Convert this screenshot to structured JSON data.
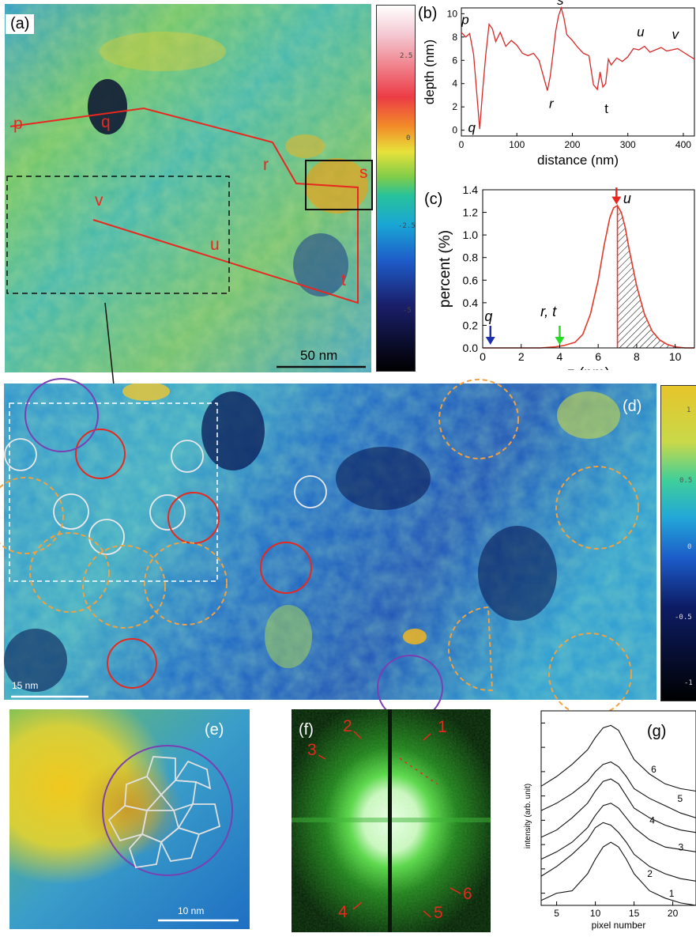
{
  "panels": {
    "a": {
      "label": "(a)",
      "points": [
        "p",
        "q",
        "r",
        "s",
        "t",
        "u",
        "v"
      ],
      "scalebar": "50 nm",
      "colorbar_ticks": [
        "2.5",
        "0",
        "-2.5",
        "-5"
      ]
    },
    "b": {
      "label": "(b)",
      "xlabel": "distance (nm)",
      "ylabel": "depth (nm)",
      "xticks": [
        "0",
        "100",
        "200",
        "300",
        "400"
      ],
      "yticks": [
        "0",
        "2",
        "4",
        "6",
        "8",
        "10"
      ],
      "annotations": [
        "p",
        "q",
        "r",
        "s",
        "t",
        "u",
        "v"
      ]
    },
    "c": {
      "label": "(c)",
      "xlabel": "z (nm)",
      "ylabel": "percent (%)",
      "xticks": [
        "0",
        "2",
        "4",
        "6",
        "8",
        "10"
      ],
      "yticks": [
        "0.0",
        "0.2",
        "0.4",
        "0.6",
        "0.8",
        "1.0",
        "1.2",
        "1.4"
      ],
      "annotations": [
        "q",
        "r, t",
        "u"
      ],
      "colors": {
        "curve": "#e23a2a",
        "q_arrow": "#1c2fb0",
        "rt_arrow": "#22dd22",
        "u_arrow": "#e8281e"
      }
    },
    "d": {
      "label": "(d)",
      "scalebar": "15 nm",
      "colorbar_ticks": [
        "1",
        "0.5",
        "0",
        "-0.5",
        "-1"
      ]
    },
    "e": {
      "label": "(e)",
      "scalebar": "10 nm"
    },
    "f": {
      "label": "(f)",
      "spots": [
        "1",
        "2",
        "3",
        "4",
        "5",
        "6"
      ]
    },
    "g": {
      "label": "(g)",
      "xlabel": "pixel number",
      "ylabel": "intensity (arb. unit)",
      "xticks": [
        "5",
        "10",
        "15",
        "20"
      ],
      "curve_labels": [
        "6",
        "5",
        "4",
        "3",
        "2",
        "1"
      ]
    }
  },
  "chart_data": [
    {
      "type": "line",
      "title": "",
      "xlabel": "distance (nm)",
      "ylabel": "depth (nm)",
      "xlim": [
        0,
        420
      ],
      "ylim": [
        -0.5,
        10.5
      ],
      "series": [
        {
          "color": "#d42a2a",
          "x": [
            0,
            8,
            15,
            22,
            28,
            33,
            38,
            44,
            50,
            56,
            62,
            70,
            80,
            90,
            100,
            110,
            120,
            130,
            140,
            148,
            155,
            160,
            165,
            170,
            175,
            180,
            185,
            190,
            200,
            210,
            220,
            230,
            238,
            245,
            250,
            255,
            260,
            265,
            270,
            280,
            290,
            300,
            310,
            320,
            330,
            340,
            350,
            360,
            370,
            380,
            390,
            400,
            410,
            420
          ],
          "y": [
            8.4,
            8.0,
            8.3,
            6.5,
            3.0,
            0.1,
            3.2,
            6.5,
            9.1,
            8.7,
            7.6,
            8.4,
            7.2,
            7.7,
            7.3,
            6.6,
            6.4,
            6.6,
            6.0,
            4.6,
            3.4,
            4.6,
            6.5,
            8.5,
            9.8,
            10.5,
            9.6,
            8.2,
            7.7,
            7.1,
            6.6,
            6.4,
            3.9,
            3.5,
            5.0,
            3.7,
            4.0,
            6.1,
            5.6,
            6.2,
            5.9,
            6.3,
            7.0,
            6.9,
            7.2,
            6.7,
            6.9,
            7.1,
            6.8,
            6.9,
            7.0,
            6.7,
            6.4,
            6.1
          ]
        }
      ]
    },
    {
      "type": "area",
      "title": "",
      "xlabel": "z (nm)",
      "ylabel": "percent (%)",
      "xlim": [
        0,
        11
      ],
      "ylim": [
        0,
        1.4
      ],
      "series": [
        {
          "color": "#e23a2a",
          "x": [
            0,
            1,
            2,
            3,
            3.8,
            4.2,
            4.8,
            5.2,
            5.6,
            6.0,
            6.3,
            6.6,
            6.8,
            7.0,
            7.2,
            7.4,
            7.6,
            8.0,
            8.4,
            8.8,
            9.2,
            9.6,
            10,
            10.5,
            11
          ],
          "y": [
            0.0,
            0.0,
            0.0,
            0.0,
            0.01,
            0.02,
            0.05,
            0.12,
            0.3,
            0.6,
            0.9,
            1.15,
            1.24,
            1.26,
            1.2,
            1.07,
            0.88,
            0.55,
            0.3,
            0.15,
            0.07,
            0.03,
            0.01,
            0.0,
            0.0
          ]
        }
      ],
      "hatched_from_x": 7.0
    },
    {
      "type": "line",
      "title": "",
      "xlabel": "pixel number",
      "ylabel": "intensity (arb. unit)",
      "xlim": [
        3,
        23
      ],
      "series": [
        {
          "name": "1",
          "x": [
            3,
            5,
            7,
            9,
            10,
            11,
            12,
            13,
            14,
            15,
            17,
            19,
            21,
            23
          ],
          "y": [
            0.2,
            0.5,
            0.6,
            1.3,
            1.9,
            2.4,
            2.6,
            2.4,
            1.9,
            1.3,
            0.6,
            0.3,
            0.1,
            0.0
          ]
        },
        {
          "name": "2",
          "x": [
            3,
            5,
            7,
            9,
            10,
            11,
            12,
            13,
            14,
            15,
            17,
            19,
            21,
            23
          ],
          "y": [
            1.2,
            1.6,
            2.1,
            2.7,
            3.2,
            3.4,
            3.3,
            3.0,
            2.6,
            2.1,
            1.6,
            1.3,
            1.1,
            1.0
          ]
        },
        {
          "name": "3",
          "x": [
            3,
            5,
            7,
            9,
            10,
            11,
            12,
            13,
            14,
            15,
            17,
            19,
            21,
            23
          ],
          "y": [
            1.9,
            2.2,
            2.6,
            3.2,
            3.7,
            4.1,
            4.2,
            4.0,
            3.6,
            3.2,
            2.7,
            2.4,
            2.3,
            2.2
          ]
        },
        {
          "name": "4",
          "x": [
            3,
            5,
            7,
            9,
            10,
            11,
            12,
            13,
            14,
            15,
            17,
            19,
            21,
            23
          ],
          "y": [
            2.8,
            3.1,
            3.6,
            4.2,
            4.7,
            5.1,
            5.2,
            5.0,
            4.5,
            4.0,
            3.6,
            3.3,
            3.1,
            3.0
          ]
        },
        {
          "name": "5",
          "x": [
            3,
            5,
            7,
            9,
            10,
            11,
            12,
            13,
            14,
            15,
            17,
            19,
            21,
            23
          ],
          "y": [
            3.9,
            4.2,
            4.6,
            5.1,
            5.5,
            5.8,
            5.9,
            5.7,
            5.3,
            4.8,
            4.4,
            4.1,
            3.8,
            3.6
          ]
        },
        {
          "name": "6",
          "x": [
            3,
            5,
            7,
            9,
            10,
            11,
            12,
            13,
            14,
            15,
            17,
            19,
            21,
            23
          ],
          "y": [
            4.9,
            5.3,
            5.8,
            6.4,
            6.9,
            7.3,
            7.4,
            7.2,
            6.6,
            6.0,
            5.4,
            5.0,
            4.8,
            4.7
          ]
        }
      ]
    }
  ]
}
